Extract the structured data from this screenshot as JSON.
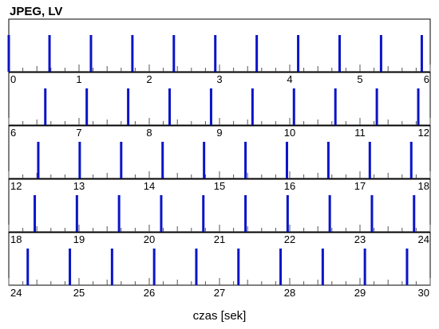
{
  "chart_data": {
    "type": "bar",
    "title": "JPEG, LV",
    "xlabel": "czas [sek]",
    "ylabel": "",
    "grid": false,
    "legend": "none",
    "colors": {
      "frame_bar": "#0a14c8",
      "small_tick": "#555555",
      "axis": "#000000"
    },
    "marker_interval_sec": 0.2,
    "panels": [
      {
        "xlim": [
          0,
          6
        ],
        "tick_labels": [
          "0",
          "1",
          "2",
          "3",
          "4",
          "5",
          "6"
        ],
        "frames_sec": [
          0.0,
          0.58,
          1.17,
          1.76,
          2.35,
          2.94,
          3.53,
          4.12,
          4.71,
          5.3,
          5.88
        ]
      },
      {
        "xlim": [
          6,
          12
        ],
        "tick_labels": [
          "6",
          "7",
          "8",
          "9",
          "10",
          "11",
          "12"
        ],
        "frames_sec": [
          6.52,
          7.11,
          7.7,
          8.29,
          8.88,
          9.47,
          10.06,
          10.65,
          11.24,
          11.83
        ]
      },
      {
        "xlim": [
          12,
          18
        ],
        "tick_labels": [
          "12",
          "13",
          "14",
          "15",
          "16",
          "17",
          "18"
        ],
        "frames_sec": [
          12.42,
          13.01,
          13.6,
          14.19,
          14.78,
          15.37,
          15.96,
          16.55,
          17.14,
          17.73
        ]
      },
      {
        "xlim": [
          18,
          24
        ],
        "tick_labels": [
          "18",
          "19",
          "20",
          "21",
          "22",
          "23",
          "24"
        ],
        "frames_sec": [
          18.37,
          18.97,
          19.57,
          20.17,
          20.77,
          21.37,
          21.97,
          22.57,
          23.17,
          23.77
        ]
      },
      {
        "xlim": [
          24,
          30
        ],
        "tick_labels": [
          "24",
          "25",
          "26",
          "27",
          "28",
          "29",
          "30"
        ],
        "frames_sec": [
          24.27,
          24.87,
          25.47,
          26.07,
          26.67,
          27.27,
          27.87,
          28.47,
          29.07,
          29.67
        ]
      }
    ]
  }
}
